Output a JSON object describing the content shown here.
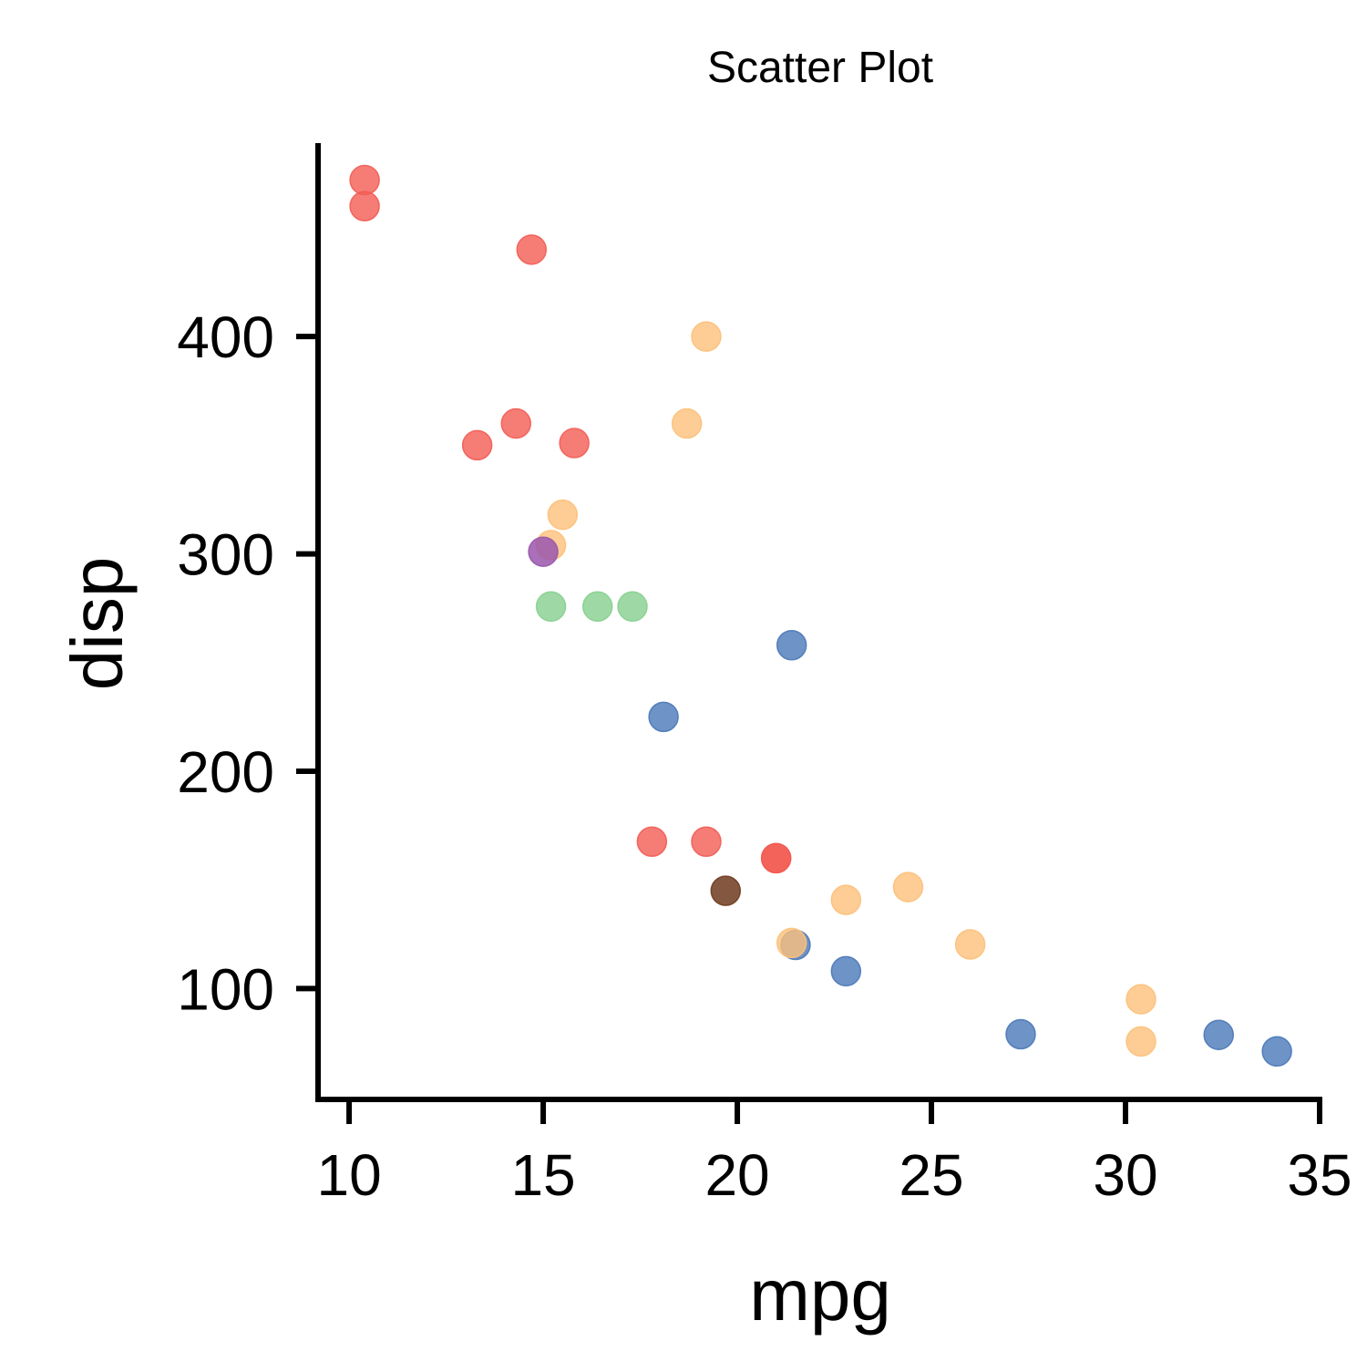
{
  "chart_data": {
    "type": "scatter",
    "title": "Scatter Plot",
    "xlabel": "mpg",
    "ylabel": "disp",
    "xlim": [
      9.2,
      35.0
    ],
    "ylim": [
      49,
      489
    ],
    "x_ticks": [
      10,
      15,
      20,
      25,
      30,
      35
    ],
    "y_ticks": [
      100,
      200,
      300,
      400
    ],
    "grid": false,
    "legend": "none",
    "points": [
      {
        "x": 10.4,
        "y": 472,
        "color": "#f25c54",
        "opacity": 0.8
      },
      {
        "x": 10.4,
        "y": 460,
        "color": "#f25c54",
        "opacity": 0.8
      },
      {
        "x": 14.7,
        "y": 440,
        "color": "#f25c54",
        "opacity": 0.8
      },
      {
        "x": 13.3,
        "y": 350,
        "color": "#f25c54",
        "opacity": 0.8
      },
      {
        "x": 14.3,
        "y": 360,
        "color": "#f25c54",
        "opacity": 0.8
      },
      {
        "x": 15.8,
        "y": 351,
        "color": "#f25c54",
        "opacity": 0.8
      },
      {
        "x": 17.8,
        "y": 167.6,
        "color": "#f25c54",
        "opacity": 0.8
      },
      {
        "x": 19.2,
        "y": 167.6,
        "color": "#f25c54",
        "opacity": 0.8
      },
      {
        "x": 21.0,
        "y": 160,
        "color": "#f25c54",
        "opacity": 0.8
      },
      {
        "x": 21.0,
        "y": 160,
        "color": "#f25c54",
        "opacity": 0.8
      },
      {
        "x": 19.2,
        "y": 400,
        "color": "#fcc07a",
        "opacity": 0.8
      },
      {
        "x": 18.7,
        "y": 360,
        "color": "#fcc07a",
        "opacity": 0.8
      },
      {
        "x": 15.5,
        "y": 318,
        "color": "#fcc07a",
        "opacity": 0.8
      },
      {
        "x": 15.2,
        "y": 304,
        "color": "#fcc07a",
        "opacity": 0.8
      },
      {
        "x": 24.4,
        "y": 146.7,
        "color": "#fcc07a",
        "opacity": 0.8
      },
      {
        "x": 22.8,
        "y": 140.8,
        "color": "#fcc07a",
        "opacity": 0.8
      },
      {
        "x": 26.0,
        "y": 120.3,
        "color": "#fcc07a",
        "opacity": 0.8
      },
      {
        "x": 30.4,
        "y": 95.1,
        "color": "#fcc07a",
        "opacity": 0.8
      },
      {
        "x": 30.4,
        "y": 75.7,
        "color": "#fcc07a",
        "opacity": 0.8
      },
      {
        "x": 15.2,
        "y": 275.8,
        "color": "#86cf8f",
        "opacity": 0.8
      },
      {
        "x": 16.4,
        "y": 275.8,
        "color": "#86cf8f",
        "opacity": 0.8
      },
      {
        "x": 17.3,
        "y": 275.8,
        "color": "#86cf8f",
        "opacity": 0.8
      },
      {
        "x": 21.4,
        "y": 258,
        "color": "#4a78b8",
        "opacity": 0.8
      },
      {
        "x": 18.1,
        "y": 225,
        "color": "#4a78b8",
        "opacity": 0.8
      },
      {
        "x": 21.5,
        "y": 120.1,
        "color": "#4a78b8",
        "opacity": 0.8
      },
      {
        "x": 22.8,
        "y": 108,
        "color": "#4a78b8",
        "opacity": 0.8
      },
      {
        "x": 27.3,
        "y": 79,
        "color": "#4a78b8",
        "opacity": 0.8
      },
      {
        "x": 32.4,
        "y": 78.7,
        "color": "#4a78b8",
        "opacity": 0.8
      },
      {
        "x": 33.9,
        "y": 71.1,
        "color": "#4a78b8",
        "opacity": 0.8
      },
      {
        "x": 21.4,
        "y": 121,
        "color": "#fcc07a",
        "opacity": 0.8
      },
      {
        "x": 15.0,
        "y": 301,
        "color": "#9a56ad",
        "opacity": 0.85
      },
      {
        "x": 19.7,
        "y": 145,
        "color": "#6f3b1f",
        "opacity": 0.85
      }
    ]
  }
}
